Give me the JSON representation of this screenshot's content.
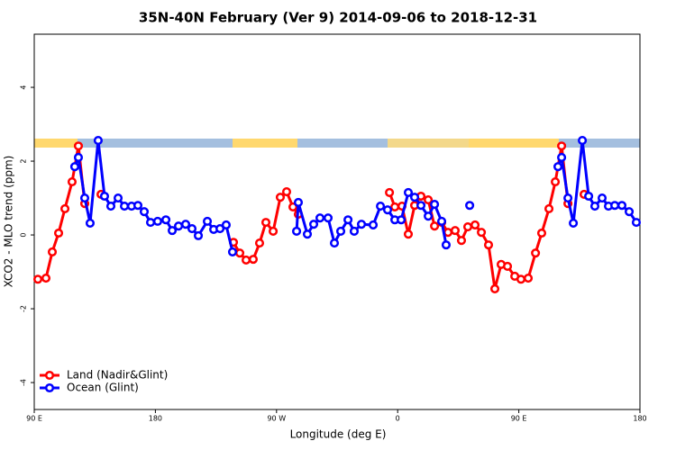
{
  "chart_data": {
    "type": "line",
    "title": "35N-40N February (Ver 9)   2014-09-06 to 2018-12-31",
    "xlabel": "Longitude (deg E)",
    "ylabel": "XCO2 - MLO trend (ppm)",
    "xlim": [
      90,
      540
    ],
    "xticks": [
      {
        "value": 90,
        "label": "90 E"
      },
      180,
      {
        "value": 270,
        "label": "90 W"
      },
      {
        "value": 360,
        "label": "0"
      },
      {
        "value": 450,
        "label": "90 E"
      },
      {
        "value": 540,
        "label": "180"
      }
    ],
    "ylim": [
      -4.73,
      5.44
    ],
    "yticks": [
      -4,
      -2,
      0,
      2,
      4
    ],
    "grid": false,
    "legend": "bottomleft",
    "series": [
      {
        "name": "Land (Nadir&Glint)",
        "color": "#ff0000",
        "x": [
          92.7,
          98.7,
          103.4,
          108.1,
          112.8,
          118.1,
          122.8,
          127.5,
          null,
          139.6,
          null,
          238.0,
          242.7,
          247.4,
          252.7,
          257.4,
          262.1,
          267.5,
          272.8,
          277.5,
          282.2,
          286.2,
          null,
          353.9,
          357.9,
          363.2,
          367.9,
          372.6,
          377.3,
          382.7,
          387.4,
          392.7,
          397.4,
          402.7,
          407.4,
          412.1,
          417.5,
          422.2,
          427.5,
          432.2,
          436.9,
          441.6,
          447.0,
          451.6,
          457.0,
          462.4,
          467.0,
          472.4,
          477.1,
          481.8,
          486.5,
          null,
          498.5
        ],
        "values": [
          -1.2,
          -1.17,
          -0.46,
          0.05,
          0.71,
          1.44,
          2.41,
          0.85,
          null,
          1.1,
          null,
          -0.2,
          -0.49,
          -0.68,
          -0.66,
          -0.22,
          0.34,
          0.1,
          1.02,
          1.17,
          0.76,
          0.56,
          null,
          1.15,
          0.76,
          0.78,
          0.02,
          0.8,
          1.05,
          0.95,
          0.24,
          0.34,
          0.07,
          0.12,
          -0.15,
          0.22,
          0.27,
          0.07,
          -0.27,
          -1.46,
          -0.8,
          -0.85,
          -1.12,
          -1.2,
          -1.17,
          -0.49,
          0.05,
          0.71,
          1.44,
          2.41,
          0.85,
          null,
          1.1
        ]
      },
      {
        "name": "Ocean (Glint)",
        "color": "#0000ff",
        "x": [
          120.1,
          122.8,
          127.5,
          131.5,
          137.5,
          142.2,
          146.9,
          152.3,
          157.0,
          162.3,
          167.0,
          171.7,
          176.4,
          181.7,
          187.8,
          192.5,
          197.2,
          202.5,
          207.2,
          211.9,
          218.6,
          223.3,
          228.0,
          232.6,
          237.3,
          null,
          284.9,
          286.2,
          292.9,
          297.6,
          302.3,
          308.3,
          313.0,
          317.7,
          323.1,
          327.7,
          333.1,
          341.8,
          347.2,
          352.5,
          357.9,
          362.6,
          367.9,
          372.6,
          377.3,
          382.7,
          387.4,
          392.7,
          396.0,
          null,
          413.5,
          null,
          479.1,
          481.8,
          486.5,
          490.5,
          497.2,
          501.9,
          506.5,
          511.9,
          516.6,
          521.3,
          526.6,
          532.0,
          537.3
        ],
        "values": [
          1.85,
          2.1,
          1.0,
          0.32,
          2.56,
          1.05,
          0.78,
          1.0,
          0.78,
          0.78,
          0.8,
          0.63,
          0.34,
          0.37,
          0.41,
          0.12,
          0.24,
          0.29,
          0.17,
          -0.02,
          0.37,
          0.15,
          0.17,
          0.27,
          -0.46,
          null,
          0.1,
          0.88,
          0.02,
          0.29,
          0.46,
          0.46,
          -0.22,
          0.1,
          0.41,
          0.1,
          0.29,
          0.27,
          0.78,
          0.68,
          0.41,
          0.41,
          1.15,
          1.02,
          0.8,
          0.51,
          0.83,
          0.37,
          -0.27,
          null,
          0.8,
          null,
          1.85,
          2.1,
          1.0,
          0.32,
          2.56,
          1.05,
          0.78,
          1.0,
          0.78,
          0.8,
          0.8,
          0.63,
          0.34
        ]
      }
    ]
  }
}
